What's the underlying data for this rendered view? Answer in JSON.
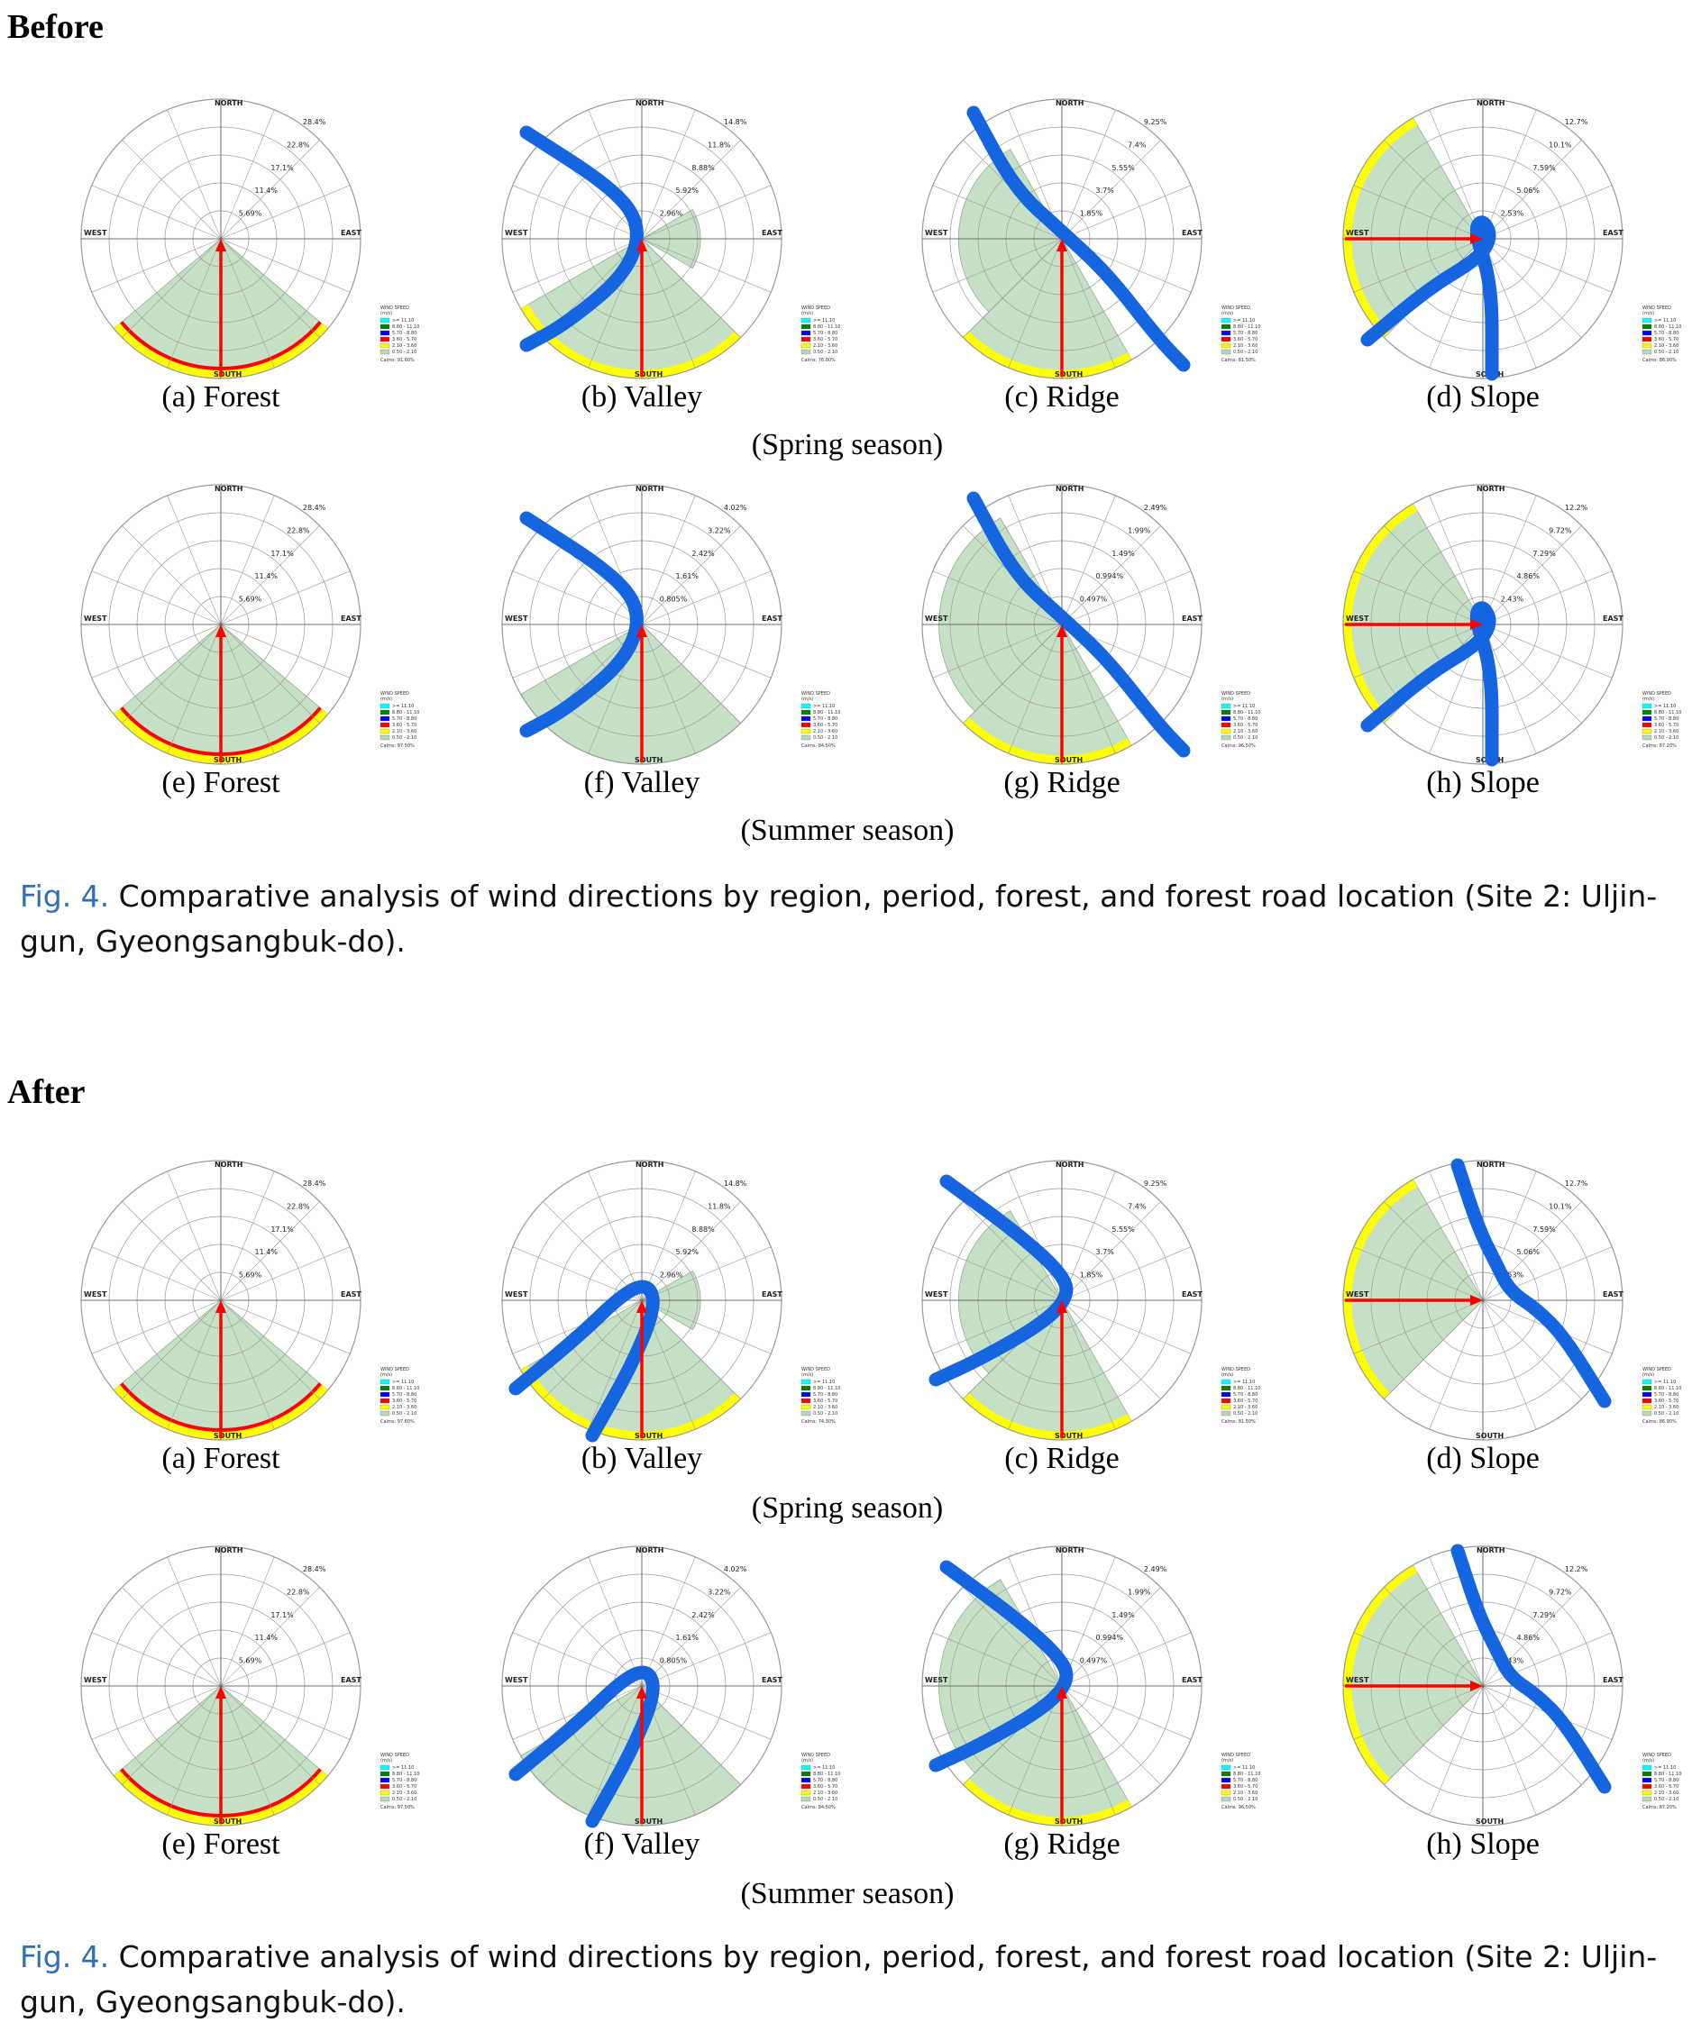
{
  "before": {
    "label": "Before",
    "caption_fig": "Fig. 4.",
    "caption_text": " Comparative analysis of wind directions by region, period, forest, and forest road location (Site 2: Uljin-gun, Gyeongsangbuk-do).",
    "spring_label": "(Spring season)",
    "summer_label": "(Summer season)"
  },
  "after": {
    "label": "After",
    "caption_fig": "Fig. 4.",
    "caption_text": " Comparative analysis of wind directions by region, period, forest, and forest road location (Site 2: Uljin-gun, Gyeongsangbuk-do).",
    "spring_label": "(Spring season)",
    "summer_label": "(Summer season)"
  },
  "directions": [
    "NORTH",
    "EAST",
    "SOUTH",
    "WEST"
  ],
  "legend": {
    "title": "WIND SPEED",
    "unit": "(m/s)",
    "bins": [
      ">= 11.10",
      "8.80 - 11.10",
      "5.70 - 8.80",
      "3.60 - 5.70",
      "2.10 - 3.60",
      "0.50 - 2.10"
    ],
    "colors": [
      "#00ffff",
      "#008000",
      "#0000ff",
      "#ff0000",
      "#ffff00",
      "#b5d8b5"
    ]
  },
  "colors": {
    "petal": "#c6e0c6",
    "petal_edge": "#8fb08f",
    "rim_yellow": "#ffff00",
    "rim_red": "#ff0000",
    "road": "#1565e0",
    "arrow": "#ff0000",
    "caption_fig": "#2f6fb5"
  },
  "chart_data": [
    {
      "type": "wind-rose",
      "panel": "before",
      "caption": "(a) Forest",
      "season": "Spring",
      "ticks": [
        "5.69%",
        "11.4%",
        "17.1%",
        "22.8%",
        "28.4%"
      ],
      "calms": "Calms: 91.60%",
      "dominant_direction": "South",
      "sector_deg": [
        130,
        230
      ],
      "sector_extent_pct": 100,
      "rim": [
        "yellow",
        "red"
      ],
      "road_direction": null,
      "prevailing_arrow": "from South"
    },
    {
      "type": "wind-rose",
      "panel": "before",
      "caption": "(b) Valley",
      "season": "Spring",
      "ticks": [
        "2.96%",
        "5.92%",
        "8.88%",
        "11.8%",
        "14.8%"
      ],
      "calms": "Calms: 76.00%",
      "dominant_direction": "South",
      "sector_deg": [
        135,
        240
      ],
      "sector_extent_pct": 100,
      "secondary_sector_deg": [
        60,
        120
      ],
      "secondary_extent_pct": 42,
      "rim": [
        "yellow"
      ],
      "road_path": "valley-curve",
      "prevailing_arrow": "from South"
    },
    {
      "type": "wind-rose",
      "panel": "before",
      "caption": "(c) Ridge",
      "season": "Spring",
      "ticks": [
        "1.85%",
        "3.7%",
        "5.55%",
        "7.4%",
        "9.25%"
      ],
      "calms": "Calms: 81.50%",
      "dominant_direction": "South",
      "sector_deg": [
        150,
        225
      ],
      "sector_extent_pct": 100,
      "secondary_sector_deg": [
        225,
        330
      ],
      "secondary_extent_pct": 74,
      "rim": [
        "yellow"
      ],
      "road_path": "ridge-diagonal",
      "prevailing_arrow": "from South"
    },
    {
      "type": "wind-rose",
      "panel": "before",
      "caption": "(d) Slope",
      "season": "Spring",
      "ticks": [
        "2.53%",
        "5.06%",
        "7.59%",
        "10.1%",
        "12.7%"
      ],
      "calms": "Calms: 86.90%",
      "dominant_direction": "West",
      "sector_deg": [
        225,
        330
      ],
      "sector_extent_pct": 100,
      "rim": [
        "yellow"
      ],
      "road_path": "slope-hook",
      "prevailing_arrow": "from West"
    },
    {
      "type": "wind-rose",
      "panel": "before",
      "caption": "(e) Forest",
      "season": "Summer",
      "ticks": [
        "5.69%",
        "11.4%",
        "17.1%",
        "22.8%",
        "28.4%"
      ],
      "calms": "Calms: 97.50%",
      "dominant_direction": "South",
      "sector_deg": [
        130,
        230
      ],
      "sector_extent_pct": 100,
      "rim": [
        "yellow",
        "red"
      ],
      "road_direction": null,
      "prevailing_arrow": "from South"
    },
    {
      "type": "wind-rose",
      "panel": "before",
      "caption": "(f) Valley",
      "season": "Summer",
      "ticks": [
        "0.805%",
        "1.61%",
        "2.42%",
        "3.22%",
        "4.02%"
      ],
      "calms": "Calms: 84.50%",
      "dominant_direction": "South",
      "sector_deg": [
        135,
        240
      ],
      "sector_extent_pct": 100,
      "rim": [],
      "road_path": "valley-curve",
      "prevailing_arrow": "from South"
    },
    {
      "type": "wind-rose",
      "panel": "before",
      "caption": "(g) Ridge",
      "season": "Summer",
      "ticks": [
        "0.497%",
        "0.994%",
        "1.49%",
        "1.99%",
        "2.49%"
      ],
      "calms": "Calms: 96.50%",
      "dominant_direction": "South",
      "sector_deg": [
        150,
        225
      ],
      "sector_extent_pct": 100,
      "secondary_sector_deg": [
        225,
        330
      ],
      "secondary_extent_pct": 88,
      "rim": [
        "yellow"
      ],
      "road_path": "ridge-diagonal",
      "prevailing_arrow": "from South"
    },
    {
      "type": "wind-rose",
      "panel": "before",
      "caption": "(h) Slope",
      "season": "Summer",
      "ticks": [
        "2.43%",
        "4.86%",
        "7.29%",
        "9.72%",
        "12.2%"
      ],
      "calms": "Calms: 87.20%",
      "dominant_direction": "West",
      "sector_deg": [
        225,
        330
      ],
      "sector_extent_pct": 100,
      "rim": [
        "yellow"
      ],
      "road_path": "slope-hook",
      "prevailing_arrow": "from West"
    },
    {
      "type": "wind-rose",
      "panel": "after",
      "caption": "(a) Forest",
      "season": "Spring",
      "ticks": [
        "5.69%",
        "11.4%",
        "17.1%",
        "22.8%",
        "28.4%"
      ],
      "calms": "Calms: 97.60%",
      "dominant_direction": "South",
      "sector_deg": [
        130,
        230
      ],
      "sector_extent_pct": 100,
      "rim": [
        "yellow",
        "red"
      ],
      "road_direction": null,
      "prevailing_arrow": "from South"
    },
    {
      "type": "wind-rose",
      "panel": "after",
      "caption": "(b) Valley",
      "season": "Spring",
      "ticks": [
        "2.96%",
        "5.92%",
        "8.88%",
        "11.8%",
        "14.8%"
      ],
      "calms": "Calms: 74.30%",
      "dominant_direction": "South",
      "sector_deg": [
        135,
        240
      ],
      "sector_extent_pct": 100,
      "secondary_sector_deg": [
        60,
        120
      ],
      "secondary_extent_pct": 42,
      "rim": [
        "yellow"
      ],
      "road_path": "after-valley",
      "prevailing_arrow": "from South"
    },
    {
      "type": "wind-rose",
      "panel": "after",
      "caption": "(c) Ridge",
      "season": "Spring",
      "ticks": [
        "1.85%",
        "3.7%",
        "5.55%",
        "7.4%",
        "9.25%"
      ],
      "calms": "Calms: 81.50%",
      "dominant_direction": "South",
      "sector_deg": [
        150,
        225
      ],
      "sector_extent_pct": 100,
      "secondary_sector_deg": [
        225,
        330
      ],
      "secondary_extent_pct": 74,
      "rim": [
        "yellow"
      ],
      "road_path": "after-ridge",
      "prevailing_arrow": "from South"
    },
    {
      "type": "wind-rose",
      "panel": "after",
      "caption": "(d) Slope",
      "season": "Spring",
      "ticks": [
        "2.53%",
        "5.06%",
        "7.59%",
        "10.1%",
        "12.7%"
      ],
      "calms": "Calms: 86.90%",
      "dominant_direction": "West",
      "sector_deg": [
        225,
        330
      ],
      "sector_extent_pct": 100,
      "rim": [
        "yellow"
      ],
      "road_path": "after-slope",
      "prevailing_arrow": "from West"
    },
    {
      "type": "wind-rose",
      "panel": "after",
      "caption": "(e) Forest",
      "season": "Summer",
      "ticks": [
        "5.69%",
        "11.4%",
        "17.1%",
        "22.8%",
        "28.4%"
      ],
      "calms": "Calms: 97.50%",
      "dominant_direction": "South",
      "sector_deg": [
        130,
        230
      ],
      "sector_extent_pct": 100,
      "rim": [
        "yellow",
        "red"
      ],
      "road_direction": null,
      "prevailing_arrow": "from South"
    },
    {
      "type": "wind-rose",
      "panel": "after",
      "caption": "(f) Valley",
      "season": "Summer",
      "ticks": [
        "0.805%",
        "1.61%",
        "2.42%",
        "3.22%",
        "4.02%"
      ],
      "calms": "Calms: 84.50%",
      "dominant_direction": "South",
      "sector_deg": [
        135,
        240
      ],
      "sector_extent_pct": 100,
      "rim": [],
      "road_path": "after-valley",
      "prevailing_arrow": "from South"
    },
    {
      "type": "wind-rose",
      "panel": "after",
      "caption": "(g) Ridge",
      "season": "Summer",
      "ticks": [
        "0.497%",
        "0.994%",
        "1.49%",
        "1.99%",
        "2.49%"
      ],
      "calms": "Calms: 96.50%",
      "dominant_direction": "South",
      "sector_deg": [
        150,
        225
      ],
      "sector_extent_pct": 100,
      "secondary_sector_deg": [
        225,
        330
      ],
      "secondary_extent_pct": 88,
      "rim": [
        "yellow"
      ],
      "road_path": "after-ridge",
      "prevailing_arrow": "from South"
    },
    {
      "type": "wind-rose",
      "panel": "after",
      "caption": "(h) Slope",
      "season": "Summer",
      "ticks": [
        "2.43%",
        "4.86%",
        "7.29%",
        "9.72%",
        "12.2%"
      ],
      "calms": "Calms: 87.20%",
      "dominant_direction": "West",
      "sector_deg": [
        225,
        330
      ],
      "sector_extent_pct": 100,
      "rim": [
        "yellow"
      ],
      "road_path": "after-slope",
      "prevailing_arrow": "from West"
    }
  ]
}
